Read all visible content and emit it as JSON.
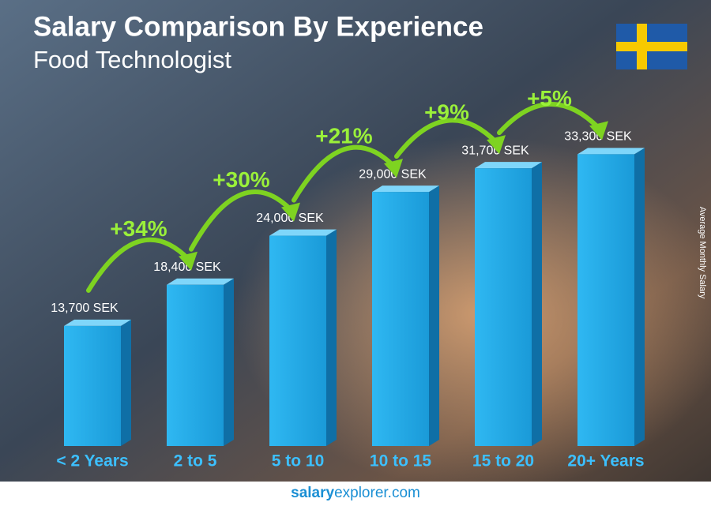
{
  "chart_data": {
    "type": "bar",
    "title": "Salary Comparison By Experience",
    "subtitle": "Food Technologist",
    "y_axis_label": "Average Monthly Salary",
    "categories": [
      "< 2 Years",
      "2 to 5",
      "5 to 10",
      "10 to 15",
      "15 to 20",
      "20+ Years"
    ],
    "values": [
      13700,
      18400,
      24000,
      29000,
      31700,
      33300
    ],
    "value_labels": [
      "13,700 SEK",
      "18,400 SEK",
      "24,000 SEK",
      "29,000 SEK",
      "31,700 SEK",
      "33,300 SEK"
    ],
    "growth_labels": [
      "+34%",
      "+30%",
      "+21%",
      "+9%",
      "+5%"
    ],
    "color": "#1fa9e6",
    "ylim": [
      0,
      40000
    ],
    "footer": {
      "brand": "salary",
      "rest": "explorer.com"
    }
  }
}
